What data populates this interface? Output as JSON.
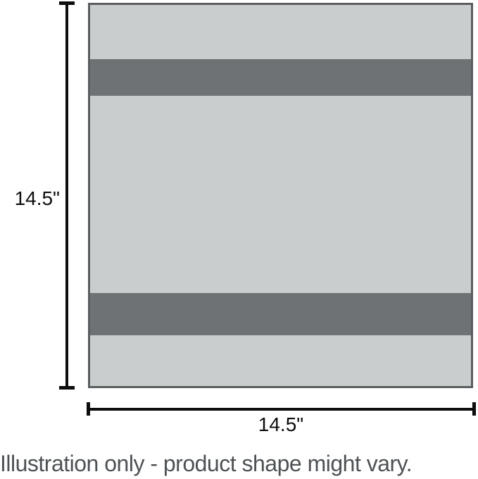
{
  "figure": {
    "height_dimension": {
      "label": "14.5\""
    },
    "width_dimension": {
      "label": "14.5\""
    },
    "caption": "Illustration only - product shape might vary.",
    "colors": {
      "panel_fill": "#c9cdce",
      "panel_border": "#5a5e60",
      "stripe": "#6e7274",
      "dimension": "#0d0d0d",
      "caption_text": "#4d5256",
      "background": "#ffffff"
    }
  }
}
